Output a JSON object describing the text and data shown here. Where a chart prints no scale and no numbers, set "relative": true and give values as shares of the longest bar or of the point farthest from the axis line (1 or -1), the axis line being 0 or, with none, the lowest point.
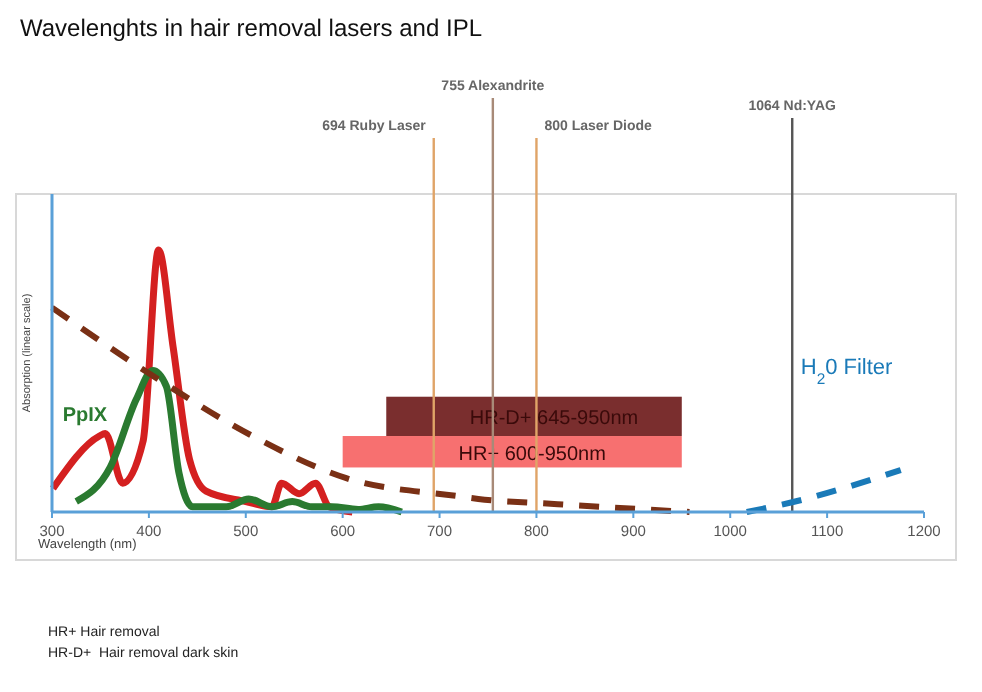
{
  "chart_data": {
    "type": "line",
    "title": "Wavelenghts in hair removal lasers and IPL",
    "xlabel": "Wavelength (nm)",
    "ylabel": "Absorption (linear scale)",
    "relative": true,
    "xlim": [
      300,
      1200
    ],
    "xticks": [
      300,
      400,
      500,
      600,
      700,
      800,
      900,
      1000,
      1100,
      1200
    ],
    "series": [
      {
        "color": "#d42020",
        "line_style": "solid",
        "x": [
          301,
          349,
          355,
          373,
          394,
          410,
          425,
          442,
          459,
          500,
          527,
          537,
          555,
          572,
          586,
          610
        ],
        "values": [
          0.09,
          0.29,
          0.3,
          0.11,
          0.27,
          1.0,
          0.63,
          0.2,
          0.08,
          0.04,
          0.02,
          0.11,
          0.07,
          0.11,
          0.02,
          0
        ]
      },
      {
        "name": "PpIX",
        "color": "#2a7a30",
        "line_style": "solid",
        "x": [
          325,
          360,
          387,
          404,
          418,
          431,
          445,
          480,
          503,
          527,
          548,
          568,
          589,
          616,
          637,
          661
        ],
        "values": [
          0.04,
          0.17,
          0.43,
          0.54,
          0.48,
          0.15,
          0.02,
          0.02,
          0.05,
          0.02,
          0.04,
          0.02,
          0.02,
          0.01,
          0.02,
          0
        ]
      },
      {
        "color": "#7a3015",
        "line_style": "dashed",
        "x": [
          300,
          404,
          507,
          603,
          720,
          740,
          822,
          958
        ],
        "values": [
          0.78,
          0.52,
          0.29,
          0.13,
          0.06,
          0.05,
          0.03,
          0
        ]
      },
      {
        "name": "H$_{2}$0 Filter",
        "color": "#1a7ab8",
        "line_style": "dashed",
        "x": [
          1017,
          1078,
          1125,
          1176
        ],
        "values": [
          0,
          0.05,
          0.1,
          0.16
        ]
      }
    ],
    "ref_lines": [
      {
        "axis": "x",
        "value": 694,
        "label": "694 Ruby Laser",
        "color": "#e0a468"
      },
      {
        "axis": "x",
        "value": 755,
        "label": "755 Alexandrite",
        "color": "#a88a78"
      },
      {
        "axis": "x",
        "value": 800,
        "label": "800 Laser Diode",
        "color": "#e0a468"
      },
      {
        "axis": "x",
        "value": 1064,
        "label": "1064 Nd:YAG",
        "color": "#555555"
      }
    ],
    "bands": [
      {
        "axis": "x",
        "from": 645,
        "to": 950,
        "label": "HR-D+ 645-950nm",
        "color": "#7a2e2e"
      },
      {
        "axis": "x",
        "from": 600,
        "to": 950,
        "label": "HR+ 600-950nm",
        "color": "#f77070"
      }
    ],
    "annotations": [
      "HR+ Hair removal",
      "HR-D+  Hair removal dark skin"
    ]
  }
}
